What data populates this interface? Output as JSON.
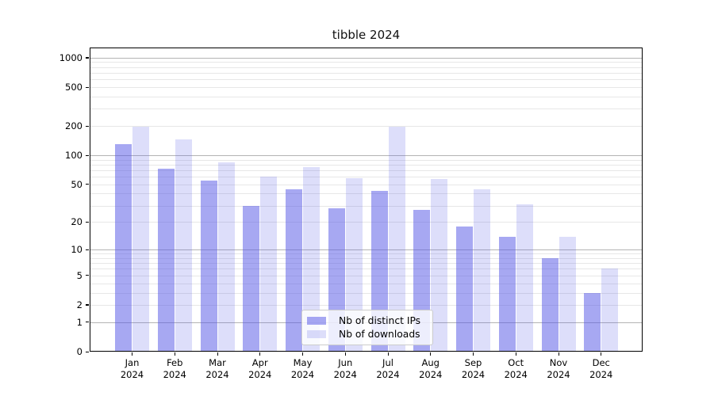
{
  "title": "tibble 2024",
  "legend": {
    "items": [
      {
        "label": "Nb of distinct IPs",
        "series": "distinct_ips"
      },
      {
        "label": "Nb of downloads",
        "series": "downloads"
      }
    ]
  },
  "colors": {
    "bar_distinct_ips": "rgba(87,89,230,0.52)",
    "bar_downloads": "rgba(87,89,230,0.20)",
    "grid_major": "#b4b4b4",
    "grid_minor": "#e7e7e7",
    "frame": "#000000"
  },
  "chart_data": {
    "type": "bar",
    "title": "tibble 2024",
    "categories": [
      "Jan",
      "Feb",
      "Mar",
      "Apr",
      "May",
      "Jun",
      "Jul",
      "Aug",
      "Sep",
      "Oct",
      "Nov",
      "Dec"
    ],
    "category_year": "2024",
    "series": [
      {
        "name": "Nb of distinct IPs",
        "values": [
          130,
          73,
          55,
          30,
          44,
          28,
          43,
          27,
          18,
          14,
          8,
          3
        ]
      },
      {
        "name": "Nb of downloads",
        "values": [
          195,
          145,
          84,
          60,
          75,
          58,
          195,
          57,
          44,
          31,
          14,
          6
        ]
      }
    ],
    "xlabel": "",
    "ylabel": "",
    "yscale": "log1p",
    "ylim": [
      0,
      1270
    ],
    "y_tick_labels": [
      0,
      1,
      2,
      5,
      10,
      20,
      50,
      100,
      200,
      500,
      1000
    ],
    "y_major_gridlines": [
      1,
      10,
      100,
      1000
    ],
    "y_minor_gridlines": [
      2,
      3,
      4,
      5,
      6,
      7,
      8,
      9,
      20,
      30,
      40,
      50,
      60,
      70,
      80,
      90,
      200,
      300,
      400,
      500,
      600,
      700,
      800,
      900
    ],
    "grid": "on",
    "legend_position": "lower center"
  }
}
